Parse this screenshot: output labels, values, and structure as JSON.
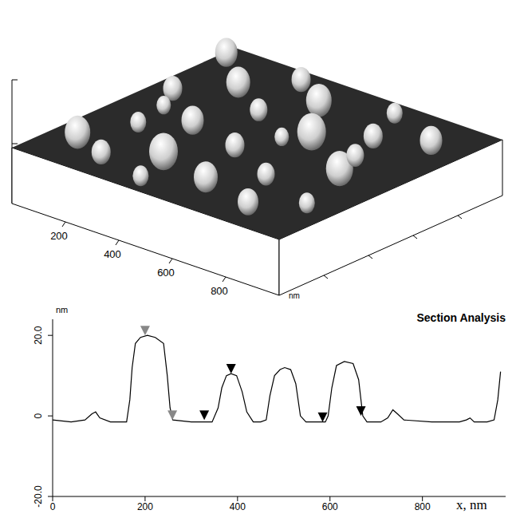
{
  "chart_data": [
    {
      "type": "surface",
      "xlim": [
        0,
        1000
      ],
      "xticks": [
        200,
        400,
        600,
        800
      ],
      "x_label": "nm"
    },
    {
      "type": "line",
      "title": "Section Analysis",
      "y_label": "nm",
      "x_label": "x, nm",
      "color": "#000000",
      "xlim": [
        0,
        980
      ],
      "xticks": [
        0,
        200,
        400,
        600,
        800
      ],
      "ylim": [
        -20,
        24
      ],
      "yticks": [
        {
          "value": -20,
          "label": "-20.0"
        },
        0,
        {
          "value": 20,
          "label": "20.0"
        }
      ],
      "grid": false,
      "x": [
        0,
        40,
        70,
        85,
        93,
        102,
        125,
        160,
        167,
        172,
        179,
        190,
        205,
        222,
        240,
        248,
        254,
        260,
        300,
        345,
        358,
        366,
        376,
        386,
        398,
        410,
        420,
        434,
        450,
        462,
        470,
        480,
        492,
        502,
        515,
        526,
        536,
        548,
        570,
        590,
        596,
        604,
        614,
        631,
        650,
        662,
        671,
        680,
        710,
        725,
        736,
        746,
        760,
        820,
        880,
        895,
        903,
        912,
        940,
        955,
        963,
        969
      ],
      "values": [
        -1,
        -1.5,
        -1,
        0.5,
        1,
        -0.5,
        -1.5,
        -1.5,
        4,
        12,
        18,
        19.5,
        20,
        19.5,
        18,
        10,
        2,
        -1,
        -1.5,
        -1.5,
        2,
        7,
        10,
        10.5,
        10,
        6,
        1,
        -1.5,
        -1.5,
        -1,
        5,
        10,
        11.5,
        12,
        11.5,
        8,
        0,
        -1.5,
        -1.5,
        -1.5,
        0,
        7,
        12.5,
        13.5,
        13,
        9,
        0,
        -1.5,
        -1.5,
        -0.5,
        1.5,
        0.5,
        -1,
        -1.5,
        -1.5,
        -1,
        -0.5,
        -1.5,
        -1.5,
        -1,
        4,
        11
      ],
      "points": {
        "x": [
          200,
          259,
          328,
          386,
          584,
          667
        ],
        "values": [
          20,
          -1,
          -1,
          10.5,
          -1.5,
          0
        ],
        "colors": [
          "#888888",
          "#888888",
          "#000000",
          "#000000",
          "#000000",
          "#000000"
        ],
        "marker": "triangle_down"
      }
    }
  ]
}
